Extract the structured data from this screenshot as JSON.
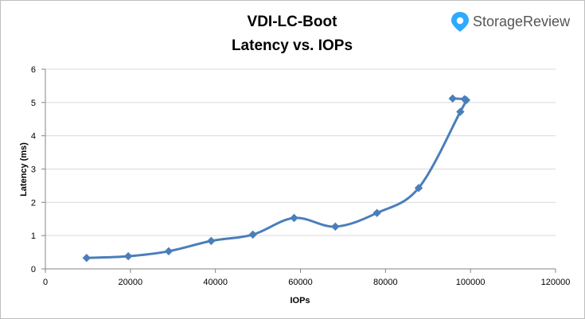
{
  "brand": {
    "name": "StorageReview",
    "icon": "storagereview-logo-icon",
    "icon_color": "#2eaaff"
  },
  "chart_data": {
    "type": "line",
    "title": "VDI-LC-Boot",
    "subtitle": "Latency vs. IOPs",
    "xlabel": "IOPs",
    "ylabel": "Latency (ms)",
    "xlim": [
      0,
      120000
    ],
    "ylim": [
      0,
      6
    ],
    "xticks": [
      "0",
      "20000",
      "40000",
      "60000",
      "80000",
      "100000",
      "120000"
    ],
    "yticks": [
      "0",
      "1",
      "2",
      "3",
      "4",
      "5",
      "6"
    ],
    "grid": "horizontal",
    "legend": "none",
    "line_color": "#4a7ebb",
    "series": [
      {
        "x": [
          9700,
          19500,
          29000,
          39000,
          48800,
          58500,
          68200,
          78000,
          87800,
          97600,
          99000,
          98600,
          95800
        ],
        "y": [
          0.33,
          0.38,
          0.53,
          0.84,
          1.03,
          1.53,
          1.27,
          1.68,
          2.43,
          4.72,
          5.07,
          5.1,
          5.12
        ]
      }
    ]
  }
}
